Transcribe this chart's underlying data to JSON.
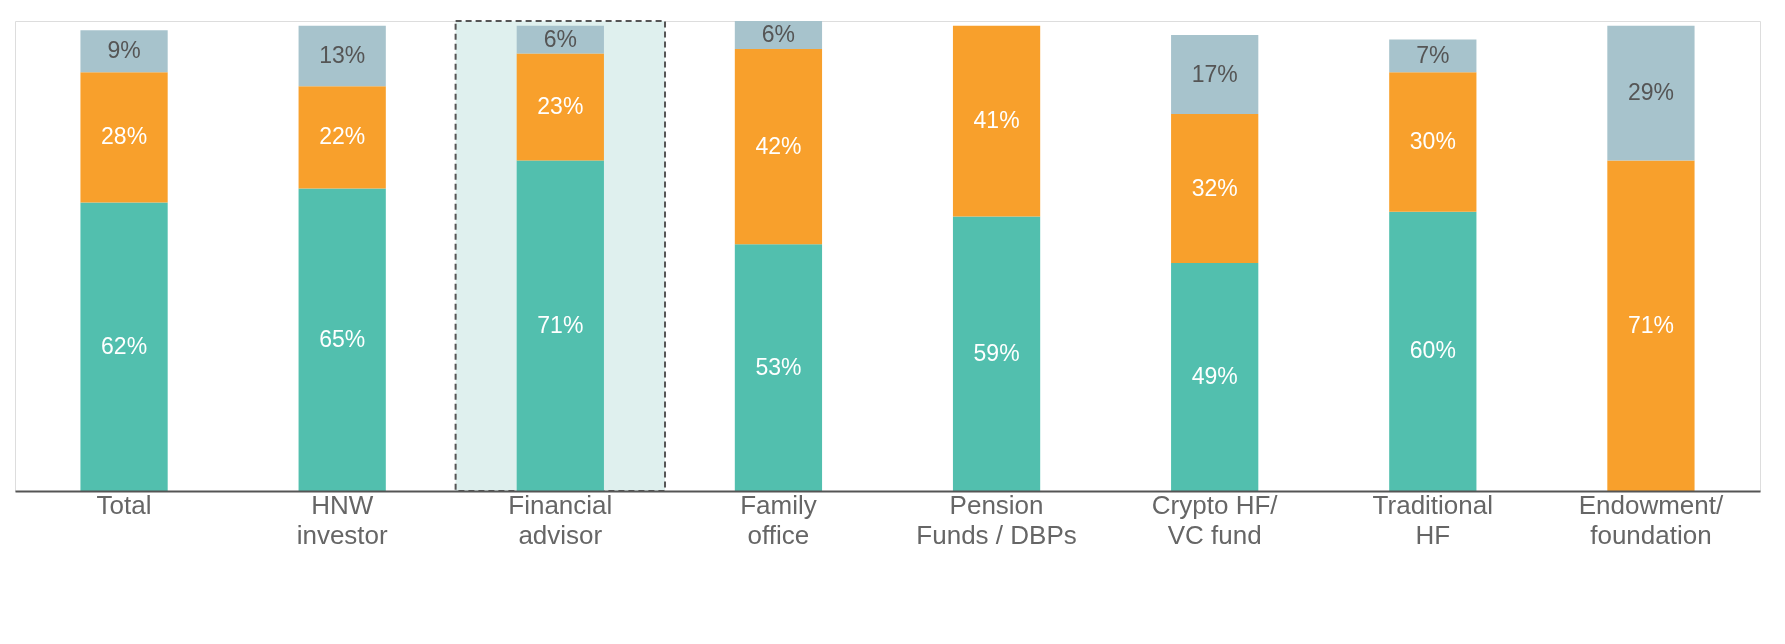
{
  "chart_data": {
    "type": "bar",
    "stacked": true,
    "grid": false,
    "categories": [
      "Total",
      "HNW\ninvestor",
      "Financial\nadvisor",
      "Family\noffice",
      "Pension\nFunds / DBPs",
      "Crypto HF/\nVC fund",
      "Traditional\nHF",
      "Endowment/\nfoundation"
    ],
    "series": [
      {
        "color": "#52bfae",
        "values": [
          62,
          65,
          71,
          53,
          59,
          49,
          60,
          null
        ],
        "value_labels": [
          "62%",
          "65%",
          "71%",
          "53%",
          "59%",
          "49%",
          "60%",
          null
        ]
      },
      {
        "color": "#f8a02c",
        "values": [
          28,
          22,
          23,
          42,
          41,
          32,
          30,
          71
        ],
        "value_labels": [
          "28%",
          "22%",
          "23%",
          "42%",
          "41%",
          "32%",
          "30%",
          "71%"
        ]
      },
      {
        "color": "#a7c3cc",
        "values": [
          9,
          13,
          6,
          6,
          null,
          17,
          7,
          29
        ],
        "value_labels": [
          "9%",
          "13%",
          "6%",
          "6%",
          null,
          "17%",
          "7%",
          "29%"
        ]
      }
    ],
    "bands": [
      {
        "axis": "x",
        "from": "Financial\nadvisor",
        "to": "Financial\nadvisor",
        "color": "#dff0ee"
      }
    ]
  }
}
